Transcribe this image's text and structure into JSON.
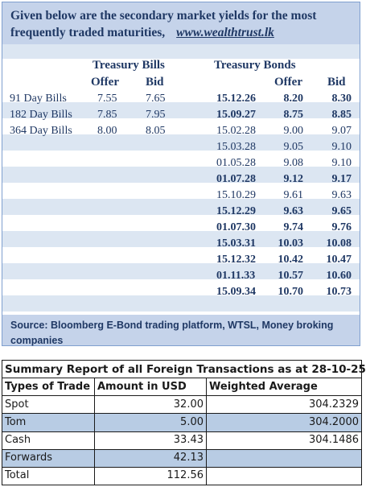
{
  "header": {
    "line1": "Given below are the secondary market yields for the most",
    "line2": "frequently traded maturities,",
    "link": "www.wealthtrust.lk"
  },
  "bills": {
    "title": "Treasury Bills",
    "offer_label": "Offer",
    "bid_label": "Bid",
    "rows": [
      {
        "name": "91 Day Bills",
        "offer": "7.55",
        "bid": "7.65"
      },
      {
        "name": "182 Day Bills",
        "offer": "7.85",
        "bid": "7.95"
      },
      {
        "name": "364 Day Bills",
        "offer": "8.00",
        "bid": "8.05"
      }
    ]
  },
  "bonds": {
    "title": "Treasury Bonds",
    "offer_label": "Offer",
    "bid_label": "Bid",
    "rows": [
      {
        "maturity": "15.12.26",
        "offer": "8.20",
        "bid": "8.30",
        "bold": true
      },
      {
        "maturity": "15.09.27",
        "offer": "8.75",
        "bid": "8.85",
        "bold": true
      },
      {
        "maturity": "15.02.28",
        "offer": "9.00",
        "bid": "9.07",
        "bold": false
      },
      {
        "maturity": "15.03.28",
        "offer": "9.05",
        "bid": "9.10",
        "bold": false
      },
      {
        "maturity": "01.05.28",
        "offer": "9.08",
        "bid": "9.10",
        "bold": false
      },
      {
        "maturity": "01.07.28",
        "offer": "9.12",
        "bid": "9.17",
        "bold": true
      },
      {
        "maturity": "15.10.29",
        "offer": "9.61",
        "bid": "9.63",
        "bold": false
      },
      {
        "maturity": "15.12.29",
        "offer": "9.63",
        "bid": "9.65",
        "bold": true
      },
      {
        "maturity": "01.07.30",
        "offer": "9.74",
        "bid": "9.76",
        "bold": true
      },
      {
        "maturity": "15.03.31",
        "offer": "10.03",
        "bid": "10.08",
        "bold": true
      },
      {
        "maturity": "15.12.32",
        "offer": "10.42",
        "bid": "10.47",
        "bold": true
      },
      {
        "maturity": "01.11.33",
        "offer": "10.57",
        "bid": "10.60",
        "bold": true
      },
      {
        "maturity": "15.09.34",
        "offer": "10.70",
        "bid": "10.73",
        "bold": true
      }
    ]
  },
  "source": {
    "line1": "Source: Bloomberg E-Bond trading platform, WTSL, Money broking",
    "line2": "companies"
  },
  "summary": {
    "title": "Summary Report of all Foreign Transactions as at 28-10-25",
    "col_type": "Types of Trade",
    "col_amount": "Amount in USD",
    "col_avg": "Weighted Average",
    "rows": [
      {
        "type": "Spot",
        "amount": "32.00",
        "avg": "304.2329"
      },
      {
        "type": "Tom",
        "amount": "5.00",
        "avg": "304.2000"
      },
      {
        "type": "Cash",
        "amount": "33.43",
        "avg": "304.1486"
      },
      {
        "type": "Forwards",
        "amount": "42.13",
        "avg": ""
      },
      {
        "type": "Total",
        "amount": "112.56",
        "avg": ""
      }
    ]
  },
  "colors": {
    "navy_text": "#1f3864",
    "header_band": "#c5d3ea",
    "row_band": "#dce6f2",
    "summary_alt_row": "#b8cce4"
  }
}
